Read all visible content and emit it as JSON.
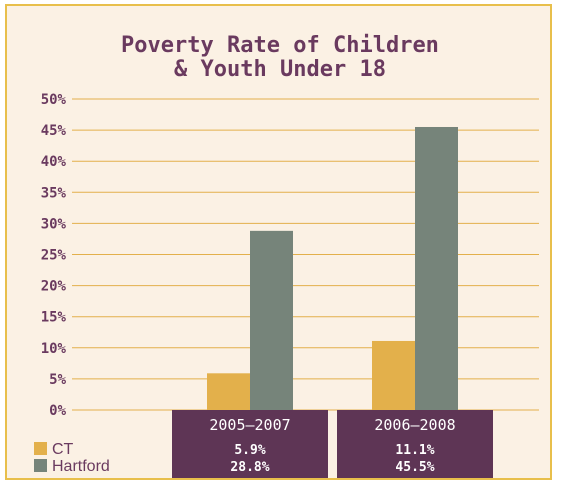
{
  "chart_data": {
    "type": "bar",
    "title_lines": [
      "Poverty Rate of Children",
      "& Youth Under 18"
    ],
    "categories": [
      "2005–2007",
      "2006–2008"
    ],
    "series": [
      {
        "name": "CT",
        "values": [
          5.9,
          11.1
        ],
        "labels": [
          "5.9%",
          "11.1%"
        ],
        "color": "#e3b04b"
      },
      {
        "name": "Hartford",
        "values": [
          28.8,
          45.5
        ],
        "labels": [
          "28.8%",
          "45.5%"
        ],
        "color": "#76847a"
      }
    ],
    "y_ticks": [
      "0%",
      "5%",
      "10%",
      "15%",
      "20%",
      "25%",
      "30%",
      "35%",
      "40%",
      "45%",
      "50%"
    ],
    "ylim": [
      0,
      50
    ],
    "grid": true,
    "legend_position": "bottom-left",
    "colors": {
      "title": "#6a3a5f",
      "grid": "#e3b04b",
      "table_bg": "#5e3555",
      "frame": "#e8bf4b",
      "background": "#fbf1e4"
    }
  }
}
